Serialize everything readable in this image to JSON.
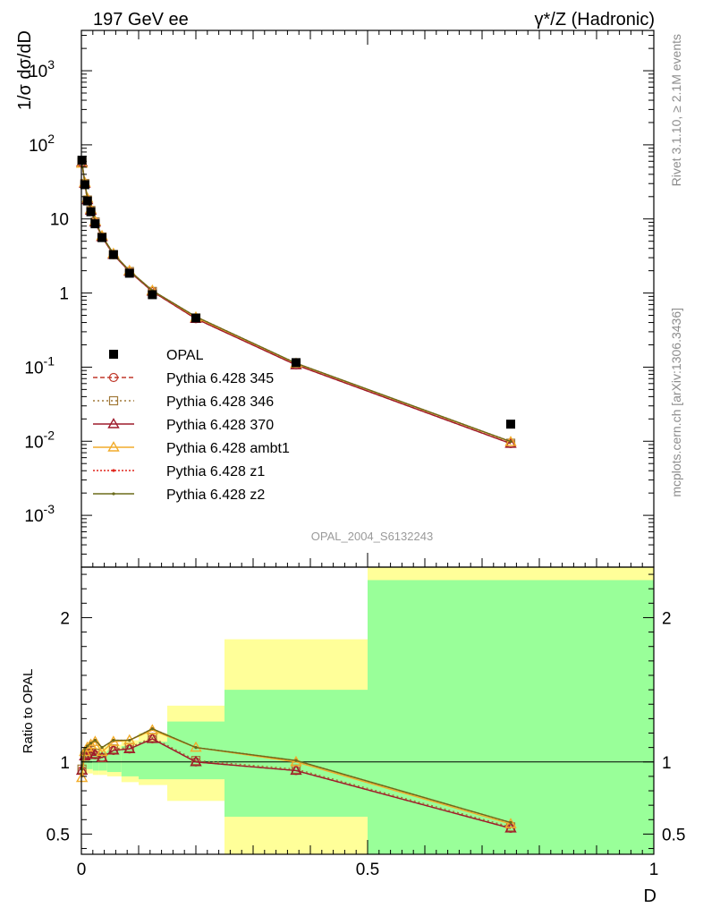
{
  "header": {
    "left": "197 GeV ee",
    "right": "γ*/Z (Hadronic)"
  },
  "side_labels": {
    "rivet": "Rivet 3.1.10, ≥ 2.1M events",
    "mcplots": "mcplots.cern.ch [arXiv:1306.3436]"
  },
  "watermark": "OPAL_2004_S6132243",
  "colors": {
    "band_inner": "#99ff99",
    "band_outer": "#ffff99",
    "data": "#000000"
  },
  "chart_data": [
    {
      "type": "line",
      "panel": "main",
      "ylabel": "1/σ dσ/dD",
      "yscale": "log",
      "ylim": [
        0.0002,
        3500
      ],
      "xlim": [
        0,
        1
      ],
      "y_ticks": [
        {
          "label": "10",
          "exp": "-3",
          "value": 0.001
        },
        {
          "label": "10",
          "exp": "-2",
          "value": 0.01
        },
        {
          "label": "10",
          "exp": "-1",
          "value": 0.1
        },
        {
          "label": "1",
          "exp": "",
          "value": 1
        },
        {
          "label": "10",
          "exp": "",
          "value": 10
        },
        {
          "label": "10",
          "exp": "2",
          "value": 100
        },
        {
          "label": "10",
          "exp": "3",
          "value": 1000
        }
      ],
      "x": [
        0.001,
        0.006,
        0.0105,
        0.0165,
        0.024,
        0.036,
        0.056,
        0.084,
        0.124,
        0.2,
        0.375,
        0.75
      ],
      "data": {
        "name": "OPAL",
        "y": [
          62,
          29,
          17.5,
          12.5,
          8.6,
          5.6,
          3.3,
          1.85,
          0.95,
          0.46,
          0.115,
          0.017
        ]
      },
      "series": [
        {
          "name": "Pythia 6.428 345",
          "color": "#c0392b",
          "dash": "5,3",
          "marker": "circle",
          "y": [
            58,
            30,
            18,
            13,
            9.0,
            5.7,
            3.3,
            1.95,
            1.05,
            0.45,
            0.107,
            0.0093
          ]
        },
        {
          "name": "Pythia 6.428 346",
          "color": "#a07838",
          "dash": "2,3",
          "marker": "square",
          "y": [
            59,
            30,
            18,
            13,
            9.1,
            5.7,
            3.3,
            1.95,
            1.05,
            0.46,
            0.108,
            0.0094
          ]
        },
        {
          "name": "Pythia 6.428 370",
          "color": "#9e1b2c",
          "dash": "",
          "marker": "triangle",
          "y": [
            58,
            30,
            18,
            13,
            9.0,
            5.7,
            3.3,
            1.95,
            1.05,
            0.45,
            0.107,
            0.0093
          ]
        },
        {
          "name": "Pythia 6.428 ambt1",
          "color": "#f2ac2b",
          "dash": "",
          "marker": "triangle",
          "y": [
            56,
            31,
            19,
            13.5,
            9.3,
            5.9,
            3.4,
            2.0,
            1.08,
            0.47,
            0.112,
            0.0098
          ]
        },
        {
          "name": "Pythia 6.428 z1",
          "color": "#e0251b",
          "dash": "2,2",
          "marker": "dot",
          "y": [
            59,
            31,
            19,
            13.5,
            9.4,
            5.9,
            3.4,
            2.0,
            1.08,
            0.48,
            0.113,
            0.0099
          ]
        },
        {
          "name": "Pythia 6.428 z2",
          "color": "#6b6b1a",
          "dash": "",
          "marker": "dot",
          "y": [
            59,
            31,
            19,
            13.5,
            9.4,
            5.9,
            3.4,
            2.0,
            1.08,
            0.48,
            0.113,
            0.0099
          ]
        }
      ],
      "legend": "left"
    },
    {
      "type": "line",
      "panel": "ratio",
      "ylabel": "Ratio to OPAL",
      "xlabel": "D",
      "ylim": [
        0.36,
        2.35
      ],
      "xlim": [
        0,
        1
      ],
      "x_ticks": [
        {
          "label": "0",
          "value": 0
        },
        {
          "label": "0.5",
          "value": 0.5
        },
        {
          "label": "1",
          "value": 1
        }
      ],
      "y_ticks": [
        {
          "label": "0.5",
          "value": 0.5
        },
        {
          "label": "1",
          "value": 1
        },
        {
          "label": "2",
          "value": 2
        }
      ],
      "bands": [
        {
          "x0": 0.0,
          "x1": 0.002,
          "inner": [
            0.96,
            1.04
          ],
          "outer": [
            0.93,
            1.07
          ]
        },
        {
          "x0": 0.002,
          "x1": 0.01,
          "inner": [
            0.95,
            1.05
          ],
          "outer": [
            0.92,
            1.08
          ]
        },
        {
          "x0": 0.01,
          "x1": 0.02,
          "inner": [
            0.95,
            1.05
          ],
          "outer": [
            0.92,
            1.09
          ]
        },
        {
          "x0": 0.02,
          "x1": 0.03,
          "inner": [
            0.94,
            1.06
          ],
          "outer": [
            0.91,
            1.1
          ]
        },
        {
          "x0": 0.03,
          "x1": 0.045,
          "inner": [
            0.94,
            1.07
          ],
          "outer": [
            0.91,
            1.11
          ]
        },
        {
          "x0": 0.045,
          "x1": 0.07,
          "inner": [
            0.93,
            1.08
          ],
          "outer": [
            0.9,
            1.12
          ]
        },
        {
          "x0": 0.07,
          "x1": 0.1,
          "inner": [
            0.9,
            1.11
          ],
          "outer": [
            0.86,
            1.15
          ]
        },
        {
          "x0": 0.1,
          "x1": 0.15,
          "inner": [
            0.88,
            1.14
          ],
          "outer": [
            0.84,
            1.2
          ]
        },
        {
          "x0": 0.15,
          "x1": 0.25,
          "inner": [
            0.88,
            1.28
          ],
          "outer": [
            0.73,
            1.39
          ]
        },
        {
          "x0": 0.25,
          "x1": 0.5,
          "inner": [
            0.62,
            1.5
          ],
          "outer": [
            0.36,
            1.85
          ]
        },
        {
          "x0": 0.5,
          "x1": 1.0,
          "inner": [
            0.36,
            2.26
          ],
          "outer": [
            0.36,
            2.35
          ]
        }
      ],
      "series": [
        {
          "name": "Pythia 6.428 345",
          "y": [
            0.94,
            1.04,
            1.05,
            1.07,
            1.05,
            1.03,
            1.08,
            1.09,
            1.16,
            1.0,
            0.94,
            0.54
          ]
        },
        {
          "name": "Pythia 6.428 346",
          "y": [
            0.95,
            1.04,
            1.06,
            1.08,
            1.06,
            1.03,
            1.09,
            1.1,
            1.17,
            1.01,
            0.95,
            0.55
          ]
        },
        {
          "name": "Pythia 6.428 370",
          "y": [
            0.94,
            1.04,
            1.05,
            1.07,
            1.05,
            1.03,
            1.08,
            1.09,
            1.16,
            1.0,
            0.94,
            0.54
          ]
        },
        {
          "name": "Pythia 6.428 ambt1",
          "y": [
            0.89,
            1.07,
            1.1,
            1.12,
            1.14,
            1.07,
            1.14,
            1.15,
            1.22,
            1.1,
            1.0,
            0.57
          ]
        },
        {
          "name": "Pythia 6.428 z1",
          "y": [
            0.95,
            1.09,
            1.11,
            1.13,
            1.15,
            1.1,
            1.15,
            1.15,
            1.23,
            1.1,
            1.01,
            0.58
          ]
        },
        {
          "name": "Pythia 6.428 z2",
          "y": [
            0.95,
            1.09,
            1.11,
            1.13,
            1.15,
            1.1,
            1.15,
            1.15,
            1.23,
            1.1,
            1.01,
            0.58
          ]
        }
      ]
    }
  ]
}
